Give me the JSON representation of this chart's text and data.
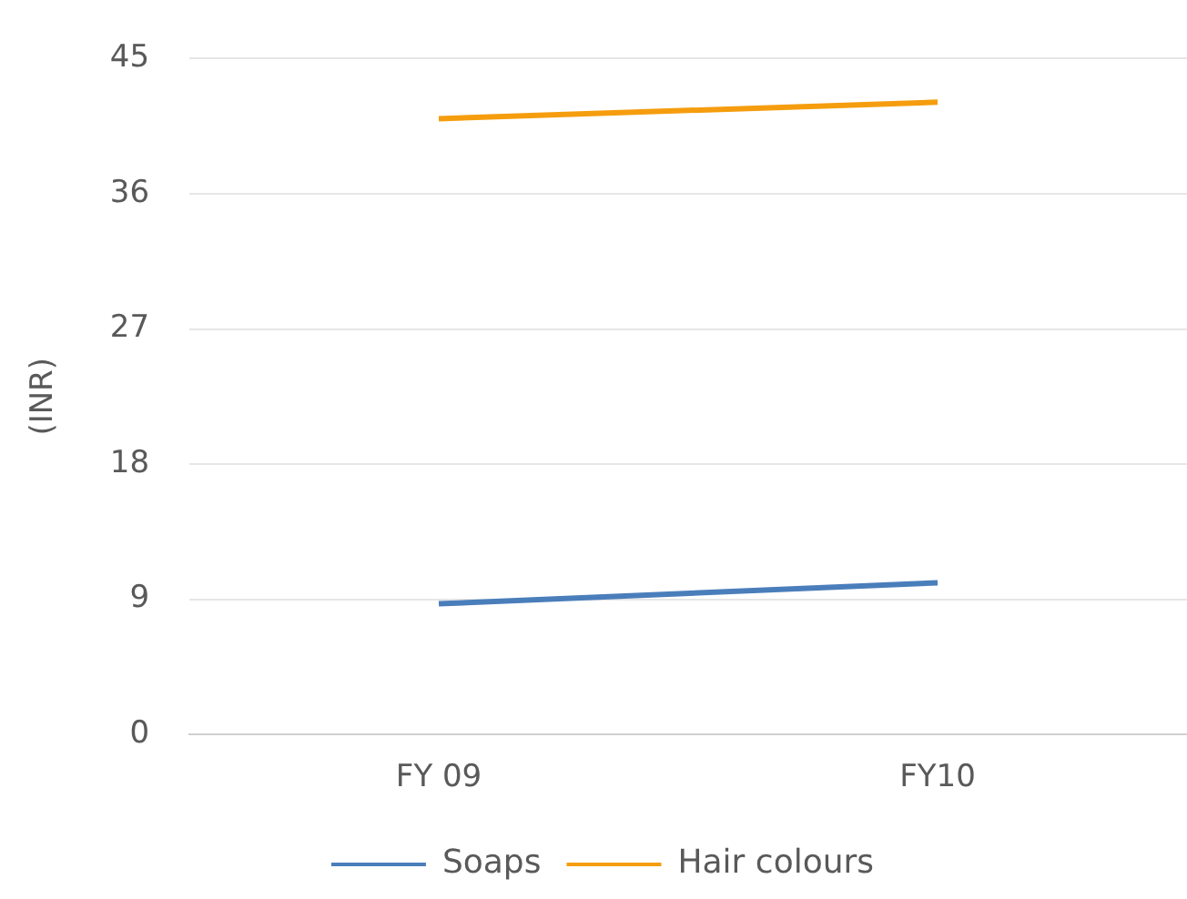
{
  "chart_data": {
    "type": "line",
    "ylabel": "(INR)",
    "categories": [
      "FY 09",
      "FY10"
    ],
    "series": [
      {
        "name": "Soaps",
        "color": "#4a7ebb",
        "values": [
          8.7,
          10.1
        ]
      },
      {
        "name": "Hair colours",
        "color": "#f59d0e",
        "values": [
          41.0,
          42.1
        ]
      }
    ],
    "ylim": [
      0,
      45
    ],
    "yticks": [
      0,
      9,
      18,
      27,
      36,
      45
    ],
    "grid": "y",
    "legend": "bottom",
    "marker": "none",
    "line_style": "solid"
  }
}
